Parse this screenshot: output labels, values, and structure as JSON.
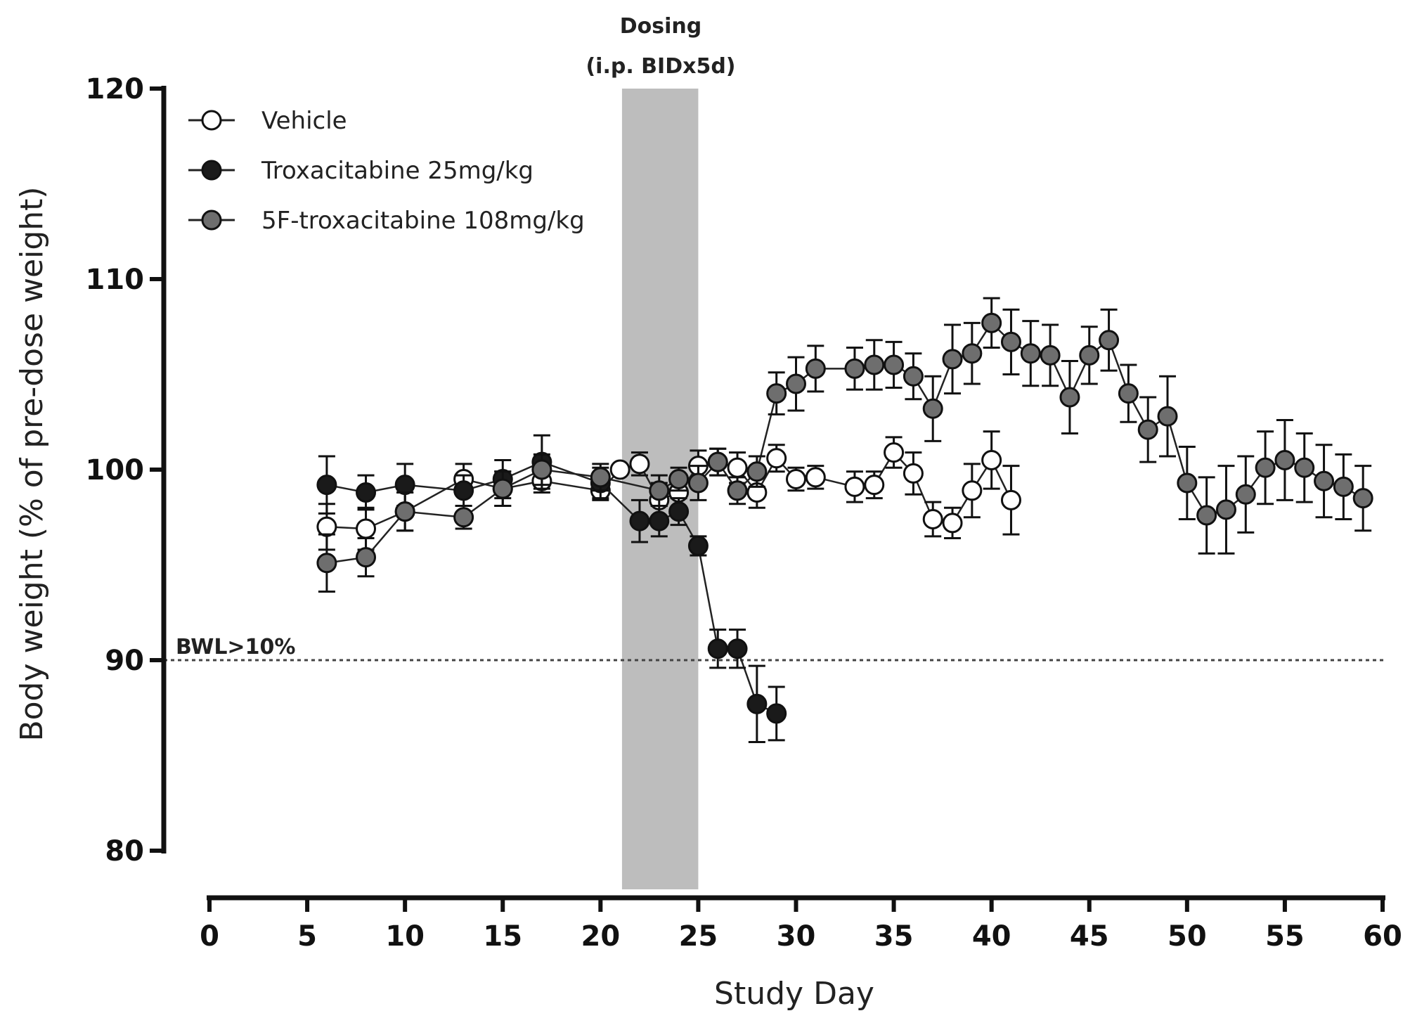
{
  "chart_data": {
    "type": "scatter",
    "xlabel": "Study Day",
    "ylabel": "Body weight (% of pre-dose weight)",
    "xlim": [
      0,
      60
    ],
    "ylim": [
      80,
      120
    ],
    "x_ticks": [
      0,
      5,
      10,
      15,
      20,
      25,
      30,
      35,
      40,
      45,
      50,
      55,
      60
    ],
    "y_ticks": [
      80,
      90,
      100,
      110,
      120
    ],
    "grid": false,
    "legend_position": "top-left",
    "dosing_band": {
      "label_line1": "Dosing",
      "label_line2": "(i.p. BIDx5d)",
      "x_start": 21.1,
      "x_end": 25
    },
    "threshold": {
      "label": "BWL>10%",
      "y": 90
    },
    "series": [
      {
        "name": "Vehicle",
        "marker_fill": "#ffffff",
        "x": [
          6,
          8,
          10,
          13,
          15,
          17,
          20,
          21,
          22,
          23,
          24,
          25,
          26,
          27,
          28,
          29,
          30,
          31,
          33,
          34,
          35,
          36,
          37,
          38,
          39,
          40,
          41
        ],
        "y": [
          97.0,
          96.9,
          97.8,
          99.5,
          99.0,
          99.4,
          98.9,
          100.0,
          100.3,
          98.4,
          98.8,
          100.2,
          100.4,
          100.1,
          98.8,
          100.6,
          99.5,
          99.6,
          99.1,
          99.2,
          100.9,
          99.8,
          97.4,
          97.2,
          98.9,
          100.5,
          98.4
        ],
        "err": [
          1.2,
          1.1,
          1.0,
          0.8,
          0.9,
          0.6,
          0.5,
          0.0,
          0.6,
          0.9,
          0.8,
          0.8,
          0.7,
          0.8,
          0.8,
          0.7,
          0.6,
          0.6,
          0.8,
          0.7,
          0.8,
          1.1,
          0.9,
          0.8,
          1.4,
          1.5,
          1.8
        ]
      },
      {
        "name": "Troxacitabine 25mg/kg",
        "marker_fill": "#1a1a1a",
        "x": [
          6,
          8,
          10,
          13,
          15,
          17,
          20,
          22,
          23,
          24,
          25,
          26,
          27,
          28,
          29
        ],
        "y": [
          99.2,
          98.8,
          99.2,
          98.9,
          99.5,
          100.4,
          99.3,
          97.3,
          97.3,
          97.8,
          96.0,
          90.6,
          90.6,
          87.7,
          87.2
        ],
        "err": [
          1.5,
          0.9,
          1.1,
          0.8,
          1.0,
          1.4,
          0.8,
          1.1,
          0.8,
          0.7,
          0.5,
          1.0,
          1.0,
          2.0,
          1.4
        ]
      },
      {
        "name": "5F-troxacitabine 108mg/kg",
        "marker_fill": "#6e6e6e",
        "x": [
          6,
          8,
          10,
          13,
          15,
          17,
          20,
          23,
          24,
          25,
          26,
          27,
          28,
          29,
          30,
          31,
          33,
          34,
          35,
          36,
          37,
          38,
          39,
          40,
          41,
          42,
          43,
          44,
          45,
          46,
          47,
          48,
          49,
          50,
          51,
          52,
          53,
          54,
          55,
          56,
          57,
          58,
          59
        ],
        "y": [
          95.1,
          95.4,
          97.8,
          97.5,
          99.0,
          100.0,
          99.6,
          98.9,
          99.5,
          99.3,
          100.4,
          98.9,
          99.9,
          104.0,
          104.5,
          105.3,
          105.3,
          105.5,
          105.5,
          104.9,
          103.2,
          105.8,
          106.1,
          107.7,
          106.7,
          106.1,
          106.0,
          103.8,
          106.0,
          106.8,
          104.0,
          102.1,
          102.8,
          99.3,
          97.6,
          97.9,
          98.7,
          100.1,
          100.5,
          100.1,
          99.4,
          99.1,
          98.5
        ],
        "err": [
          1.5,
          1.0,
          1.0,
          0.6,
          0.9,
          0.8,
          0.7,
          0.8,
          0.6,
          0.9,
          0.7,
          0.7,
          0.8,
          1.1,
          1.4,
          1.2,
          1.1,
          1.3,
          1.2,
          1.2,
          1.7,
          1.8,
          1.6,
          1.3,
          1.7,
          1.7,
          1.6,
          1.9,
          1.5,
          1.6,
          1.5,
          1.7,
          2.1,
          1.9,
          2.0,
          2.3,
          2.0,
          1.9,
          2.1,
          1.8,
          1.9,
          1.7,
          1.7
        ]
      }
    ]
  }
}
